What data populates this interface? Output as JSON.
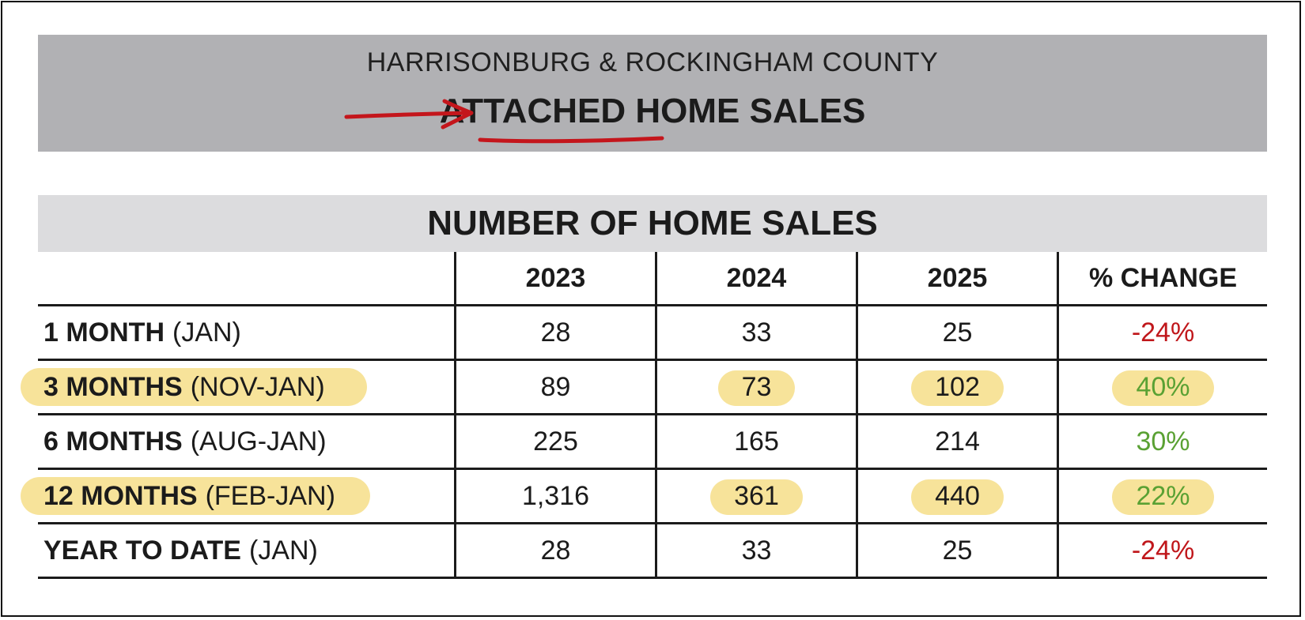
{
  "header": {
    "region": "HARRISONBURG & ROCKINGHAM COUNTY",
    "title": "ATTACHED HOME SALES"
  },
  "section_title": "NUMBER OF HOME SALES",
  "table": {
    "columns": [
      "",
      "2023",
      "2024",
      "2025",
      "% CHANGE"
    ],
    "rows": [
      {
        "period": "1 MONTH",
        "range": "(JAN)",
        "v2023": "28",
        "v2024": "33",
        "v2025": "25",
        "change": "-24%"
      },
      {
        "period": "3 MONTHS",
        "range": "(NOV-JAN)",
        "v2023": "89",
        "v2024": "73",
        "v2025": "102",
        "change": "40%"
      },
      {
        "period": "6 MONTHS",
        "range": "(AUG-JAN)",
        "v2023": "225",
        "v2024": "165",
        "v2025": "214",
        "change": "30%"
      },
      {
        "period": "12 MONTHS",
        "range": "(FEB-JAN)",
        "v2023": "1,316",
        "v2024": "361",
        "v2025": "440",
        "change": "22%"
      },
      {
        "period": "YEAR TO DATE",
        "range": "(JAN)",
        "v2023": "28",
        "v2024": "33",
        "v2025": "25",
        "change": "-24%"
      }
    ]
  },
  "colors": {
    "negative": "#c0171b",
    "positive": "#5aa133",
    "highlight": "#f7e39a",
    "annotation": "#c4161c"
  },
  "annotations": {
    "arrow": "red-arrow-icon",
    "underline": "red-underline"
  }
}
